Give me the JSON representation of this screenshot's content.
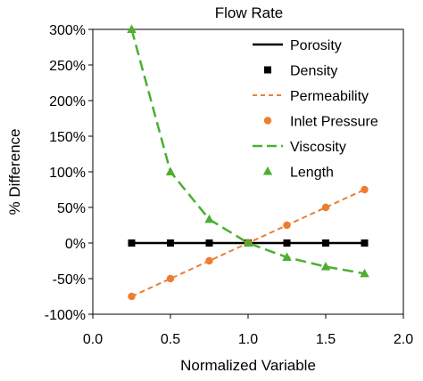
{
  "chart_data": {
    "type": "line",
    "title": "Flow Rate",
    "xlabel": "Normalized Variable",
    "ylabel": "% Difference",
    "xlim": [
      0,
      2.0
    ],
    "ylim": [
      -100,
      300
    ],
    "x_ticks": [
      0,
      0.5,
      1.0,
      1.5,
      2.0
    ],
    "x_tick_labels": [
      "0.0",
      "0.5",
      "1.0",
      "1.5",
      "2.0"
    ],
    "y_ticks": [
      300,
      250,
      200,
      150,
      100,
      50,
      0,
      -50,
      -100
    ],
    "y_tick_labels": [
      "300%",
      "250%",
      "200%",
      "150%",
      "100%",
      "50%",
      "0%",
      "-50%",
      "-100%"
    ],
    "grid": false,
    "legend_position": "top-right",
    "legend": [
      {
        "label": "Porosity",
        "kind": "line",
        "series": "porosity"
      },
      {
        "label": "Density",
        "kind": "marker",
        "series": "density"
      },
      {
        "label": "Permeability",
        "kind": "line",
        "series": "permeability"
      },
      {
        "label": "Inlet Pressure",
        "kind": "marker",
        "series": "inlet_pressure"
      },
      {
        "label": "Viscosity",
        "kind": "line",
        "series": "viscosity"
      },
      {
        "label": "Length",
        "kind": "marker",
        "series": "length"
      }
    ],
    "series": [
      {
        "id": "porosity",
        "name": "Porosity",
        "style": "solid-line",
        "color": "#000000",
        "x": [
          0.25,
          0.5,
          0.75,
          1.0,
          1.25,
          1.5,
          1.75
        ],
        "y": [
          0,
          0,
          0,
          0,
          0,
          0,
          0
        ]
      },
      {
        "id": "density",
        "name": "Density",
        "style": "square-marker",
        "color": "#000000",
        "x": [
          0.25,
          0.5,
          0.75,
          1.0,
          1.25,
          1.5,
          1.75
        ],
        "y": [
          0,
          0,
          0,
          0,
          0,
          0,
          0
        ]
      },
      {
        "id": "permeability",
        "name": "Permeability",
        "style": "dotted-line",
        "color": "#ED7D31",
        "x": [
          0.25,
          0.5,
          0.75,
          1.0,
          1.25,
          1.5,
          1.75
        ],
        "y": [
          -75,
          -50,
          -25,
          0,
          25,
          50,
          75
        ]
      },
      {
        "id": "inlet_pressure",
        "name": "Inlet Pressure",
        "style": "circle-marker",
        "color": "#ED7D31",
        "x": [
          0.25,
          0.5,
          0.75,
          1.0,
          1.25,
          1.5,
          1.75
        ],
        "y": [
          -75,
          -50,
          -25,
          0,
          25,
          50,
          75
        ]
      },
      {
        "id": "viscosity",
        "name": "Viscosity",
        "style": "dashed-line",
        "color": "#4CAF2F",
        "x": [
          0.25,
          0.5,
          0.75,
          1.0,
          1.25,
          1.5,
          1.75
        ],
        "y": [
          300,
          100,
          33.3,
          0,
          -20,
          -33.3,
          -42.9
        ]
      },
      {
        "id": "length",
        "name": "Length",
        "style": "triangle-marker",
        "color": "#4CAF2F",
        "x": [
          0.25,
          0.5,
          0.75,
          1.0,
          1.25,
          1.5,
          1.75
        ],
        "y": [
          300,
          100,
          33.3,
          0,
          -20,
          -33.3,
          -42.9
        ]
      }
    ]
  }
}
